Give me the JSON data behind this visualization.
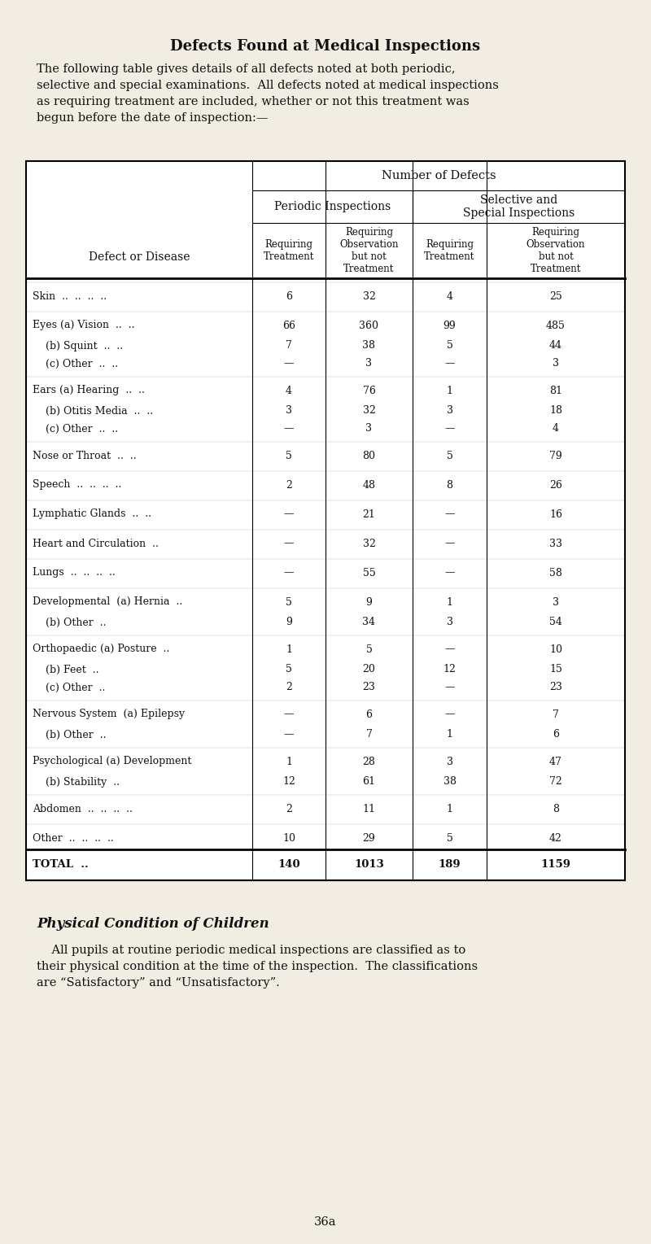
{
  "title": "Defects Found at Medical Inspections",
  "intro_lines": [
    "The following table gives details of all defects noted at both periodic,",
    "selective and special examinations.  All defects noted at medical inspections",
    "as requiring treatment are included, whether or not this treatment was",
    "begun before the date of inspection:—"
  ],
  "col_headers": {
    "main": "Number of Defects",
    "sub1": "Periodic Inspections",
    "sub2": "Selective and\nSpecial Inspections",
    "col1": "Requiring\nTreatment",
    "col2": "Requiring\nObservation\nbut not\nTreatment",
    "col3": "Requiring\nTreatment",
    "col4": "Requiring\nObservation\nbut not\nTreatment"
  },
  "row_label_col": "Defect or Disease",
  "rows": [
    {
      "label": "Skin  ..  ..  ..  ..",
      "v1": "6",
      "v2": "32",
      "v3": "4",
      "v4": "25",
      "is_total": false,
      "group_top": true
    },
    {
      "label": "Eyes (a) Vision  ..  ..",
      "v1": "66",
      "v2": "360",
      "v3": "99",
      "v4": "485",
      "is_total": false,
      "group_top": true
    },
    {
      "label": "    (b) Squint  ..  ..",
      "v1": "7",
      "v2": "38",
      "v3": "5",
      "v4": "44",
      "is_total": false,
      "group_top": false
    },
    {
      "label": "    (c) Other  ..  ..",
      "v1": "—",
      "v2": "3",
      "v3": "—",
      "v4": "3",
      "is_total": false,
      "group_top": false
    },
    {
      "label": "Ears (a) Hearing  ..  ..",
      "v1": "4",
      "v2": "76",
      "v3": "1",
      "v4": "81",
      "is_total": false,
      "group_top": true
    },
    {
      "label": "    (b) Otitis Media  ..  ..",
      "v1": "3",
      "v2": "32",
      "v3": "3",
      "v4": "18",
      "is_total": false,
      "group_top": false
    },
    {
      "label": "    (c) Other  ..  ..",
      "v1": "—",
      "v2": "3",
      "v3": "—",
      "v4": "4",
      "is_total": false,
      "group_top": false
    },
    {
      "label": "Nose or Throat  ..  ..",
      "v1": "5",
      "v2": "80",
      "v3": "5",
      "v4": "79",
      "is_total": false,
      "group_top": true
    },
    {
      "label": "Speech  ..  ..  ..  ..",
      "v1": "2",
      "v2": "48",
      "v3": "8",
      "v4": "26",
      "is_total": false,
      "group_top": true
    },
    {
      "label": "Lymphatic Glands  ..  ..",
      "v1": "—",
      "v2": "21",
      "v3": "—",
      "v4": "16",
      "is_total": false,
      "group_top": true
    },
    {
      "label": "Heart and Circulation  ..",
      "v1": "—",
      "v2": "32",
      "v3": "—",
      "v4": "33",
      "is_total": false,
      "group_top": true
    },
    {
      "label": "Lungs  ..  ..  ..  ..",
      "v1": "—",
      "v2": "55",
      "v3": "—",
      "v4": "58",
      "is_total": false,
      "group_top": true
    },
    {
      "label": "Developmental  (a) Hernia  ..",
      "v1": "5",
      "v2": "9",
      "v3": "1",
      "v4": "3",
      "is_total": false,
      "group_top": true
    },
    {
      "label": "    (b) Other  ..",
      "v1": "9",
      "v2": "34",
      "v3": "3",
      "v4": "54",
      "is_total": false,
      "group_top": false
    },
    {
      "label": "Orthopaedic (a) Posture  ..",
      "v1": "1",
      "v2": "5",
      "v3": "—",
      "v4": "10",
      "is_total": false,
      "group_top": true
    },
    {
      "label": "    (b) Feet  ..",
      "v1": "5",
      "v2": "20",
      "v3": "12",
      "v4": "15",
      "is_total": false,
      "group_top": false
    },
    {
      "label": "    (c) Other  ..",
      "v1": "2",
      "v2": "23",
      "v3": "—",
      "v4": "23",
      "is_total": false,
      "group_top": false
    },
    {
      "label": "Nervous System  (a) Epilepsy",
      "v1": "—",
      "v2": "6",
      "v3": "—",
      "v4": "7",
      "is_total": false,
      "group_top": true
    },
    {
      "label": "    (b) Other  ..",
      "v1": "—",
      "v2": "7",
      "v3": "1",
      "v4": "6",
      "is_total": false,
      "group_top": false
    },
    {
      "label": "Psychological (a) Development",
      "v1": "1",
      "v2": "28",
      "v3": "3",
      "v4": "47",
      "is_total": false,
      "group_top": true
    },
    {
      "label": "    (b) Stability  ..",
      "v1": "12",
      "v2": "61",
      "v3": "38",
      "v4": "72",
      "is_total": false,
      "group_top": false
    },
    {
      "label": "Abdomen  ..  ..  ..  ..",
      "v1": "2",
      "v2": "11",
      "v3": "1",
      "v4": "8",
      "is_total": false,
      "group_top": true
    },
    {
      "label": "Other  ..  ..  ..  ..",
      "v1": "10",
      "v2": "29",
      "v3": "5",
      "v4": "42",
      "is_total": false,
      "group_top": true
    },
    {
      "label": "TOTAL  ..",
      "v1": "140",
      "v2": "1013",
      "v3": "189",
      "v4": "1159",
      "is_total": true,
      "group_top": false
    }
  ],
  "footer_title": "Physical Condition of Children",
  "footer_lines": [
    "    All pupils at routine periodic medical inspections are classified as to",
    "their physical condition at the time of the inspection.  The classifications",
    "are “Satisfactory” and “Unsatisfactory”."
  ],
  "page_number": "36a",
  "bg_color": "#f2ede3",
  "text_color": "#111111"
}
